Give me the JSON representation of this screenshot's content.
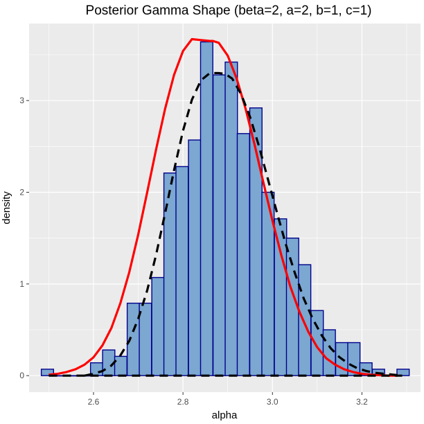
{
  "chart_data": {
    "type": "bar",
    "title": "Posterior Gamma Shape (beta=2, a=2, b=1, c=1)",
    "xlabel": "alpha",
    "ylabel": "density",
    "xlim": [
      2.456,
      3.331
    ],
    "ylim": [
      -0.18,
      3.84
    ],
    "x_ticks": [
      2.6,
      2.8,
      3.0,
      3.2
    ],
    "x_tick_labels": [
      "2.6",
      "2.8",
      "3.0",
      "3.2"
    ],
    "y_ticks": [
      0,
      1,
      2,
      3
    ],
    "y_tick_labels": [
      "0",
      "1",
      "2",
      "3"
    ],
    "grid": true,
    "legend": "none",
    "colors": {
      "panel_background": "#ebebeb",
      "grid": "#ffffff",
      "bar_fill": "#7ba7d1",
      "bar_outline": "#00008b",
      "curve_solid": "#ff0000",
      "curve_dashed": "#000000"
    },
    "histogram": {
      "bin_width": 0.0274,
      "bins": [
        {
          "x": 2.497,
          "density": 0.07
        },
        {
          "x": 2.524,
          "density": 0.0
        },
        {
          "x": 2.552,
          "density": 0.0
        },
        {
          "x": 2.579,
          "density": 0.0
        },
        {
          "x": 2.607,
          "density": 0.14
        },
        {
          "x": 2.634,
          "density": 0.28
        },
        {
          "x": 2.661,
          "density": 0.21
        },
        {
          "x": 2.689,
          "density": 0.79
        },
        {
          "x": 2.716,
          "density": 0.79
        },
        {
          "x": 2.744,
          "density": 1.07
        },
        {
          "x": 2.771,
          "density": 2.21
        },
        {
          "x": 2.798,
          "density": 2.28
        },
        {
          "x": 2.826,
          "density": 2.57
        },
        {
          "x": 2.853,
          "density": 3.64
        },
        {
          "x": 2.881,
          "density": 3.28
        },
        {
          "x": 2.908,
          "density": 3.42
        },
        {
          "x": 2.935,
          "density": 2.64
        },
        {
          "x": 2.963,
          "density": 2.92
        },
        {
          "x": 2.99,
          "density": 2.0
        },
        {
          "x": 3.018,
          "density": 1.71
        },
        {
          "x": 3.045,
          "density": 1.5
        },
        {
          "x": 3.072,
          "density": 1.21
        },
        {
          "x": 3.1,
          "density": 0.71
        },
        {
          "x": 3.127,
          "density": 0.5
        },
        {
          "x": 3.155,
          "density": 0.36
        },
        {
          "x": 3.182,
          "density": 0.36
        },
        {
          "x": 3.209,
          "density": 0.14
        },
        {
          "x": 3.237,
          "density": 0.07
        },
        {
          "x": 3.264,
          "density": 0.0
        },
        {
          "x": 3.292,
          "density": 0.07
        }
      ]
    },
    "series": [
      {
        "style": "solid",
        "color": "#ff0000",
        "x": [
          2.5,
          2.52,
          2.54,
          2.56,
          2.58,
          2.6,
          2.62,
          2.64,
          2.66,
          2.68,
          2.7,
          2.72,
          2.74,
          2.76,
          2.78,
          2.8,
          2.82,
          2.84,
          2.86,
          2.867,
          2.88,
          2.9,
          2.92,
          2.94,
          2.96,
          2.98,
          3.0,
          3.02,
          3.04,
          3.06,
          3.08,
          3.1,
          3.12,
          3.14,
          3.16,
          3.18,
          3.2,
          3.22,
          3.24,
          3.26,
          3.28
        ],
        "y": [
          0.01,
          0.02,
          0.04,
          0.07,
          0.12,
          0.2,
          0.33,
          0.52,
          0.79,
          1.13,
          1.54,
          2.0,
          2.47,
          2.91,
          3.28,
          3.54,
          3.67,
          3.66,
          3.65,
          3.65,
          3.63,
          3.49,
          3.24,
          2.91,
          2.52,
          2.1,
          1.69,
          1.31,
          0.97,
          0.7,
          0.48,
          0.31,
          0.19,
          0.12,
          0.07,
          0.04,
          0.02,
          0.01,
          0.005,
          0.0,
          0.0
        ]
      },
      {
        "style": "dashed",
        "color": "#000000",
        "x": [
          2.58,
          2.6,
          2.62,
          2.64,
          2.66,
          2.68,
          2.7,
          2.72,
          2.74,
          2.76,
          2.78,
          2.8,
          2.82,
          2.84,
          2.86,
          2.88,
          2.895,
          2.91,
          2.93,
          2.95,
          2.97,
          2.99,
          3.01,
          3.03,
          3.05,
          3.07,
          3.09,
          3.11,
          3.13,
          3.15,
          3.17,
          3.19,
          3.21,
          3.23,
          3.25,
          3.27,
          3.29
        ],
        "y": [
          0.0,
          0.02,
          0.05,
          0.11,
          0.22,
          0.38,
          0.62,
          0.93,
          1.32,
          1.77,
          2.24,
          2.67,
          3.01,
          3.22,
          3.3,
          3.3,
          3.29,
          3.24,
          3.07,
          2.82,
          2.5,
          2.14,
          1.78,
          1.43,
          1.12,
          0.84,
          0.62,
          0.44,
          0.3,
          0.2,
          0.13,
          0.08,
          0.05,
          0.03,
          0.02,
          0.01,
          0.0
        ]
      },
      {
        "style": "dashed",
        "color": "#000000",
        "x": [
          2.5,
          3.29
        ],
        "y": [
          0.0,
          0.0
        ]
      }
    ]
  }
}
